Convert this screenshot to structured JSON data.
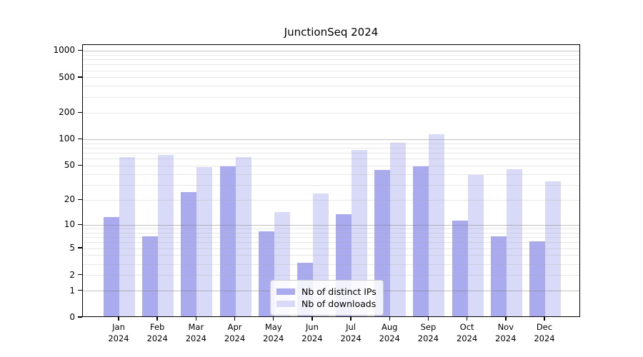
{
  "title": "JunctionSeq 2024",
  "chart_data": {
    "type": "bar",
    "title": "JunctionSeq 2024",
    "xlabel": "",
    "ylabel": "",
    "scale": "log1p",
    "categories": [
      "Jan",
      "Feb",
      "Mar",
      "Apr",
      "May",
      "Jun",
      "Jul",
      "Aug",
      "Sep",
      "Oct",
      "Nov",
      "Dec"
    ],
    "year_label": "2024",
    "series": [
      {
        "name": "Nb of distinct IPs",
        "color": "#aaaaee",
        "values": [
          12,
          7,
          24,
          48,
          8,
          3,
          13,
          43,
          48,
          11,
          7,
          6
        ]
      },
      {
        "name": "Nb of downloads",
        "color": "#d9d9f8",
        "values": [
          61,
          64,
          47,
          61,
          14,
          23,
          73,
          88,
          111,
          38,
          44,
          32
        ]
      }
    ],
    "y_ticks": [
      0,
      1,
      2,
      5,
      10,
      20,
      50,
      100,
      200,
      500,
      1000
    ],
    "ylim": [
      0,
      1170
    ],
    "grid": true,
    "grid_major_at": [
      1,
      10,
      100,
      1000
    ],
    "legend_position": "lower center",
    "colors": {
      "bar_dark": "#aaaaee",
      "bar_light": "#d9d9f8",
      "axis": "#000000",
      "grid_major": "#c3c3c3",
      "grid_minor": "#e9e9e9"
    }
  }
}
